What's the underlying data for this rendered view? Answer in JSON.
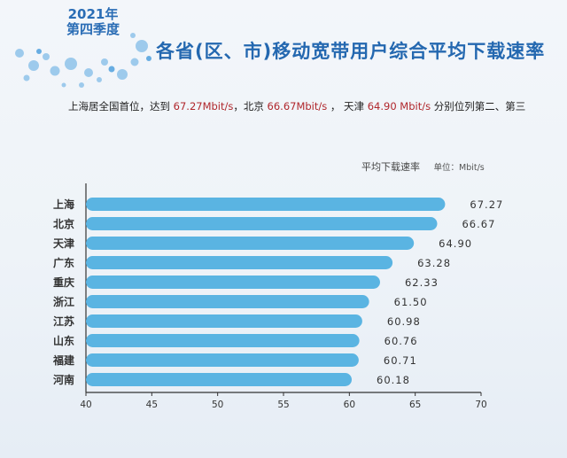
{
  "header": {
    "year": "2021年",
    "season": "第四季度",
    "title": "各省(区、市)移动宽带用户综合平均下载速率"
  },
  "summary": {
    "part1": "上海居全国首位，达到 ",
    "value1": "67.27Mbit/s",
    "part2": "，北京 ",
    "value2": "66.67Mbit/s",
    "part3": " ， 天津 ",
    "value3": "64.90 Mbit/s",
    "part4": " 分别位列第二、第三"
  },
  "chart_data": {
    "type": "bar",
    "orientation": "horizontal",
    "series_name": "平均下载速率",
    "unit": "单位：Mbit/s",
    "categories": [
      "上海",
      "北京",
      "天津",
      "广东",
      "重庆",
      "浙江",
      "江苏",
      "山东",
      "福建",
      "河南"
    ],
    "values": [
      67.27,
      66.67,
      64.9,
      63.28,
      62.33,
      61.5,
      60.98,
      60.76,
      60.71,
      60.18
    ],
    "value_labels": [
      "67.27",
      "66.67",
      "64.90",
      "63.28",
      "62.33",
      "61.50",
      "60.98",
      "60.76",
      "60.71",
      "60.18"
    ],
    "xlim": [
      40,
      70
    ],
    "xticks": [
      40,
      45,
      50,
      55,
      60,
      65,
      70
    ],
    "bar_color": "#5ab4e2",
    "grid": false
  }
}
